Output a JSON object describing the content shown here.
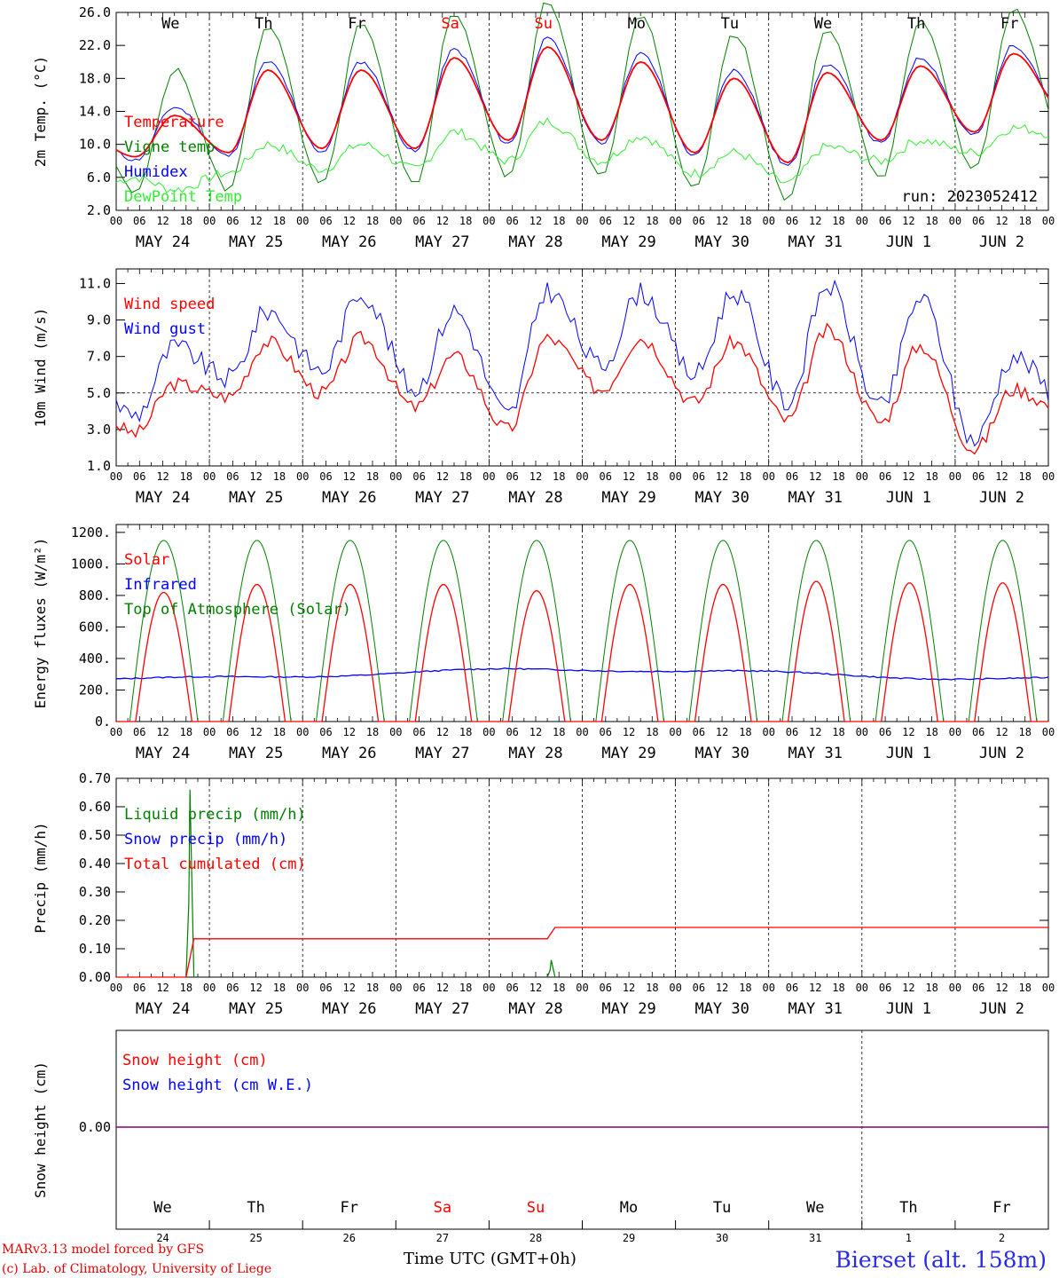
{
  "chart_data": [
    {
      "type": "line",
      "panel": "temperature",
      "ylabel": "2m Temp. (°C)",
      "ylim": [
        2,
        26
      ],
      "yticks": [
        "26.0",
        "22.0",
        "18.0",
        "14.0",
        "10.0",
        "6.0",
        "2.0"
      ],
      "legend": [
        "Temperature",
        "Vigne temp",
        "Humidex",
        "DewPoint Temp"
      ],
      "run_label": "run: 2023052412",
      "days": [
        {
          "date": "MAY 24",
          "weekday": "We",
          "tmin": 8.5,
          "tmax": 13.5
        },
        {
          "date": "MAY 25",
          "weekday": "Th",
          "tmin": 9.0,
          "tmax": 19.0
        },
        {
          "date": "MAY 26",
          "weekday": "Fr",
          "tmin": 9.5,
          "tmax": 19.0
        },
        {
          "date": "MAY 27",
          "weekday": "Sa",
          "tmin": 9.5,
          "tmax": 20.5
        },
        {
          "date": "MAY 28",
          "weekday": "Su",
          "tmin": 10.5,
          "tmax": 21.8
        },
        {
          "date": "MAY 29",
          "weekday": "Mo",
          "tmin": 10.5,
          "tmax": 20.0
        },
        {
          "date": "MAY 30",
          "weekday": "Tu",
          "tmin": 9.0,
          "tmax": 18.0
        },
        {
          "date": "MAY 31",
          "weekday": "We",
          "tmin": 7.8,
          "tmax": 18.7
        },
        {
          "date": "JUN  1",
          "weekday": "Th",
          "tmin": 10.5,
          "tmax": 19.5
        },
        {
          "date": "JUN  2",
          "weekday": "Fr",
          "tmin": 11.5,
          "tmax": 21.0
        }
      ]
    },
    {
      "type": "line",
      "panel": "wind",
      "ylabel": "10m Wind (m/s)",
      "ylim": [
        1,
        11.8
      ],
      "yticks": [
        "11.0",
        "9.0",
        "7.0",
        "5.0",
        "3.0",
        "1.0"
      ],
      "legend": [
        "Wind speed",
        "Wind gust"
      ],
      "reference_line": 5.0,
      "daily_speed_max": [
        5.5,
        7.8,
        8.0,
        7.0,
        8.0,
        8.0,
        7.8,
        8.4,
        7.6,
        5.2
      ],
      "daily_gust_max": [
        7.5,
        9.5,
        10.5,
        9.5,
        10.6,
        10.5,
        10.5,
        10.9,
        10.2,
        7.0
      ]
    },
    {
      "type": "line",
      "panel": "energy",
      "ylabel": "Energy fluxes (W/m²)",
      "ylim": [
        0,
        1250
      ],
      "yticks": [
        "1200.",
        "1000.",
        "800.",
        "600.",
        "400.",
        "200.",
        "0."
      ],
      "legend": [
        "Solar",
        "Infrared",
        "Top of Atmosphere (Solar)"
      ],
      "daily_solar_peak": [
        820,
        870,
        870,
        870,
        830,
        870,
        870,
        890,
        880,
        880
      ],
      "toa_peak": 1150,
      "infrared_level": 300
    },
    {
      "type": "line",
      "panel": "precip",
      "ylabel": "Precip (mm/h)",
      "ylim": [
        0,
        0.7
      ],
      "yticks": [
        "0.70",
        "0.60",
        "0.50",
        "0.40",
        "0.30",
        "0.20",
        "0.10",
        "0.00"
      ],
      "legend": [
        "Liquid precip (mm/h)",
        "Snow precip (mm/h)",
        "Total cumulated (cm)"
      ],
      "liquid_events": [
        {
          "day": 0,
          "hour": 19,
          "value": 0.66
        },
        {
          "day": 4,
          "hour": 16,
          "value": 0.06
        }
      ],
      "cumulated_steps": [
        {
          "day": 0,
          "hour": 20,
          "value": 0.135
        },
        {
          "day": 4,
          "hour": 17,
          "value": 0.175
        }
      ]
    },
    {
      "type": "line",
      "panel": "snow",
      "ylabel": "Snow height (cm)",
      "yticks": [
        "0.00"
      ],
      "legend": [
        "Snow height (cm)",
        "Snow height (cm W.E.)"
      ],
      "value": 0.0,
      "weekdays": [
        "We",
        "Th",
        "Fr",
        "Sa",
        "Su",
        "Mo",
        "Tu",
        "We",
        "Th",
        "Fr"
      ],
      "day_numbers": [
        "24",
        "25",
        "26",
        "27",
        "28",
        "29",
        "30",
        "31",
        "1",
        "2"
      ]
    }
  ],
  "hour_labels": [
    "00",
    "06",
    "12",
    "18"
  ],
  "colors": {
    "red": "#ff0000",
    "blue": "#0000ff",
    "green": "#008000",
    "lightgreen": "#33ee33",
    "purple": "#800080"
  },
  "footer": {
    "model": "MARv3.13 model forced by GFS",
    "lab": "(c) Lab. of Climatology, University of Liege",
    "time_label": "Time UTC (GMT+0h)",
    "location": "Bierset (alt. 158m)"
  }
}
